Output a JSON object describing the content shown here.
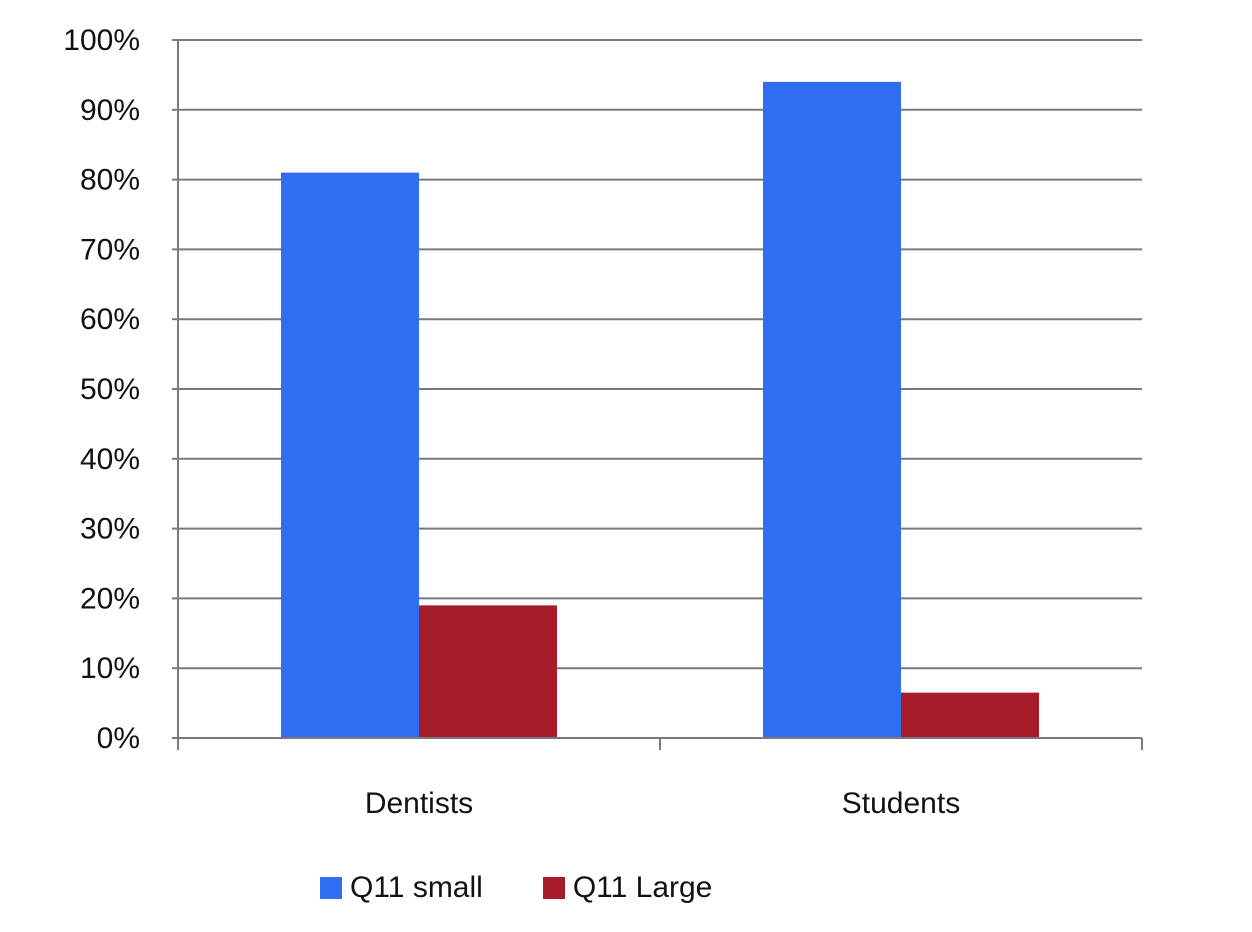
{
  "chart_data": {
    "type": "bar",
    "categories": [
      "Dentists",
      "Students"
    ],
    "series": [
      {
        "name": "Q11 small",
        "values": [
          81,
          94
        ],
        "color": "#2f6ef0"
      },
      {
        "name": "Q11 Large",
        "values": [
          19,
          6.5
        ],
        "color": "#a61c2a"
      }
    ],
    "y_ticks": [
      "0%",
      "10%",
      "20%",
      "30%",
      "40%",
      "50%",
      "60%",
      "70%",
      "80%",
      "90%",
      "100%"
    ],
    "ylim": [
      0,
      100
    ],
    "y_unit": "%",
    "grid": true,
    "legend_position": "bottom",
    "title": "",
    "xlabel": "",
    "ylabel": ""
  }
}
